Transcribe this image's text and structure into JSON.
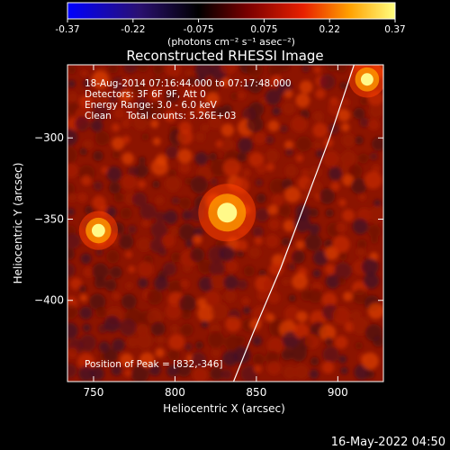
{
  "chart_data": {
    "type": "heatmap",
    "title": "Reconstructed RHESSI Image",
    "xlabel": "Heliocentric X (arcsec)",
    "ylabel": "Heliocentric Y (arcsec)",
    "xlim": [
      734,
      928
    ],
    "ylim": [
      -450,
      -255
    ],
    "xticks": [
      750,
      800,
      850,
      900
    ],
    "yticks": [
      -300,
      -350,
      -400
    ],
    "colorbar": {
      "min": -0.37,
      "max": 0.37,
      "ticks": [
        "-0.37",
        "-0.22",
        "-0.075",
        "0.075",
        "0.22",
        "0.37"
      ],
      "unit_label": "(photons cm⁻² s⁻¹ asec⁻²)"
    },
    "annotations": [
      "18-Aug-2014 07:16:44.000 to 07:17:48.000",
      "Detectors: 3F 6F 9F, Att 0",
      "Energy Range: 3.0 - 6.0 keV",
      "Clean     Total counts: 5.26E+03"
    ],
    "peak_label": "Position of Peak = [832,-346]",
    "peak": {
      "x": 832,
      "y": -346
    },
    "sources": [
      {
        "x": 832,
        "y": -346,
        "intensity": 1.0
      },
      {
        "x": 753,
        "y": -357,
        "intensity": 0.6
      },
      {
        "x": 918,
        "y": -264,
        "intensity": 0.55
      }
    ],
    "limb_curve": [
      [
        836,
        -450
      ],
      [
        848,
        -420
      ],
      [
        865,
        -380
      ],
      [
        880,
        -340
      ],
      [
        895,
        -300
      ],
      [
        905,
        -270
      ],
      [
        910,
        -255
      ]
    ],
    "grid": false
  },
  "footer": {
    "timestamp": "16-May-2022 04:50"
  },
  "colors": {
    "background": "#000000",
    "axes": "#ffffff",
    "limb": "#ffffff"
  }
}
